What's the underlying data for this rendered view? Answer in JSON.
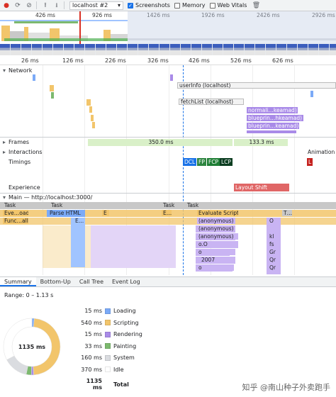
{
  "toolbar": {
    "record_icon": "record-icon",
    "reload_icon": "reload-icon",
    "clear_icon": "clear-icon",
    "upload_icon": "upload-icon",
    "download_icon": "download-icon",
    "profile_select": "localhost #2",
    "screenshots_label": "Screenshots",
    "memory_label": "Memory",
    "webvitals_label": "Web Vitals",
    "screenshots_checked": true,
    "memory_checked": false,
    "webvitals_checked": false,
    "trash_icon": "trash-icon"
  },
  "overview": {
    "ticks": [
      "426 ms",
      "926 ms",
      "1426 ms",
      "1926 ms",
      "2426 ms",
      "2926 ms"
    ]
  },
  "ruler": {
    "ticks": [
      "26 ms",
      "126 ms",
      "226 ms",
      "326 ms",
      "426 ms",
      "526 ms",
      "626 ms"
    ]
  },
  "tracks": {
    "network": "Network",
    "frames": "Frames",
    "interactions": "Interactions",
    "timings": "Timings",
    "experience": "Experience",
    "main": "Main — http://localhost:3000/"
  },
  "network": {
    "userinfo": "userInfo (localhost)",
    "fetchlist": "fetchList (localhost)",
    "items": [
      "normali…keamad)",
      "blueprin…hkeamad)",
      "blueprin…keamad)"
    ]
  },
  "frames": {
    "a": "350.0 ms",
    "b": "133.3 ms"
  },
  "interactions": {
    "animation": "Animation"
  },
  "timings": {
    "dcl": "DCL",
    "fp": "FP",
    "fcp": "FCP",
    "lcp": "LCP",
    "l": "L"
  },
  "experience": {
    "layout_shift": "Layout Shift"
  },
  "main": {
    "task": "Task",
    "ev_load": "Eve…oad",
    "func_all": "Func…all",
    "parse_html": "Parse HTML",
    "e_short": "E",
    "e_dots": "E…",
    "evaluate_script": "Evaluate Script",
    "t_dots": "T…",
    "anon": "(anonymous)",
    "oo": "o.O",
    "o": "o",
    "n2007": "2007",
    "right_col": [
      "O",
      "kl",
      "fs",
      "Gr",
      "Qr",
      "Qr"
    ]
  },
  "bottom": {
    "tabs": [
      "Summary",
      "Bottom-Up",
      "Call Tree",
      "Event Log"
    ],
    "range": "Range: 0 – 1.13 s",
    "total_center": "1135 ms",
    "legend": [
      {
        "value": "15 ms",
        "label": "Loading",
        "color": "#7baaf7"
      },
      {
        "value": "540 ms",
        "label": "Scripting",
        "color": "#f2c56b"
      },
      {
        "value": "15 ms",
        "label": "Rendering",
        "color": "#a98be8"
      },
      {
        "value": "33 ms",
        "label": "Painting",
        "color": "#7cb96e"
      },
      {
        "value": "160 ms",
        "label": "System",
        "color": "#dadce0"
      },
      {
        "value": "370 ms",
        "label": "Idle",
        "color": "#ffffff"
      },
      {
        "value": "1135 ms",
        "label": "Total",
        "color": ""
      }
    ]
  },
  "watermark": "知乎 @南山种子外卖跑手"
}
